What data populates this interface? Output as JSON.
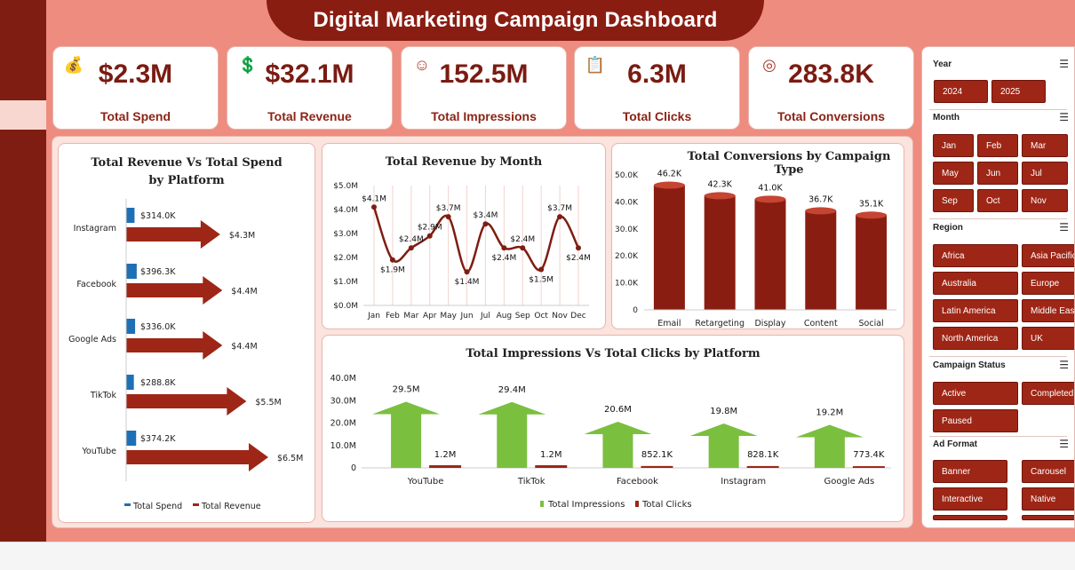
{
  "title": "Digital Marketing Campaign Dashboard",
  "kpis": [
    {
      "icon": "money-bag-icon",
      "value": "$2.3M",
      "label": "Total Spend"
    },
    {
      "icon": "revenue-growth-icon",
      "value": "$32.1M",
      "label": "Total Revenue"
    },
    {
      "icon": "audience-icon",
      "value": "152.5M",
      "label": "Total Impressions"
    },
    {
      "icon": "clipboard-icon",
      "value": "6.3M",
      "label": "Total Clicks"
    },
    {
      "icon": "target-icon",
      "value": "283.8K",
      "label": "Total Conversions"
    }
  ],
  "colors": {
    "accent": "#9e2616",
    "dark": "#7f1d12",
    "background": "#ee8c7f",
    "spend": "#1f6fb5",
    "green": "#7bbf3f"
  },
  "chart_data": [
    {
      "type": "bar",
      "title": "Total Revenue Vs Total Spend by Platform",
      "orientation": "horizontal",
      "categories": [
        "Instagram",
        "Facebook",
        "Google Ads",
        "TikTok",
        "YouTube"
      ],
      "series": [
        {
          "name": "Total Spend",
          "values": [
            314.0,
            396.3,
            336.0,
            288.8,
            374.2
          ],
          "labels": [
            "$314.0K",
            "$396.3K",
            "$336.0K",
            "$288.8K",
            "$374.2K"
          ]
        },
        {
          "name": "Total Revenue",
          "values": [
            4.3,
            4.4,
            4.4,
            5.5,
            6.5
          ],
          "labels": [
            "$4.3M",
            "$4.4M",
            "$4.4M",
            "$5.5M",
            "$6.5M"
          ]
        }
      ],
      "legend": [
        "Total Spend",
        "Total Revenue"
      ]
    },
    {
      "type": "line",
      "title": "Total Revenue  by Month",
      "categories": [
        "Jan",
        "Feb",
        "Mar",
        "Apr",
        "May",
        "Jun",
        "Jul",
        "Aug",
        "Sep",
        "Oct",
        "Nov",
        "Dec"
      ],
      "values": [
        4.1,
        1.9,
        2.4,
        2.9,
        3.7,
        1.4,
        3.4,
        2.4,
        2.4,
        1.5,
        3.7,
        2.4
      ],
      "labels": [
        "$4.1M",
        "$1.9M",
        "$2.4M",
        "$2.9M",
        "$3.7M",
        "$1.4M",
        "$3.4M",
        "$2.4M",
        "$2.4M",
        "$1.5M",
        "$3.7M",
        "$2.4M"
      ],
      "yticks": [
        "$0.0M",
        "$1.0M",
        "$2.0M",
        "$3.0M",
        "$4.0M",
        "$5.0M"
      ],
      "ylim": [
        0,
        5
      ]
    },
    {
      "type": "bar",
      "title": "Total Conversions  by Campaign Type",
      "categories": [
        "Email",
        "Retargeting",
        "Display",
        "Content",
        "Social"
      ],
      "values": [
        46.2,
        42.3,
        41.0,
        36.7,
        35.1
      ],
      "labels": [
        "46.2K",
        "42.3K",
        "41.0K",
        "36.7K",
        "35.1K"
      ],
      "yticks": [
        "0",
        "10.0K",
        "20.0K",
        "30.0K",
        "40.0K",
        "50.0K"
      ],
      "ylim": [
        0,
        50
      ]
    },
    {
      "type": "bar",
      "title": "Total Impressions Vs Total Clicks by Platform",
      "categories": [
        "YouTube",
        "TikTok",
        "Facebook",
        "Instagram",
        "Google Ads"
      ],
      "series": [
        {
          "name": "Total Impressions",
          "values": [
            29.5,
            29.4,
            20.6,
            19.8,
            19.2
          ],
          "labels": [
            "29.5M",
            "29.4M",
            "20.6M",
            "19.8M",
            "19.2M"
          ]
        },
        {
          "name": "Total Clicks",
          "values": [
            1.2,
            1.2,
            0.8521,
            0.8281,
            0.7734
          ],
          "labels": [
            "1.2M",
            "1.2M",
            "852.1K",
            "828.1K",
            "773.4K"
          ]
        }
      ],
      "yticks": [
        "0",
        "10.0M",
        "20.0M",
        "30.0M",
        "40.0M"
      ],
      "ylim": [
        0,
        40
      ],
      "legend": [
        "Total Impressions",
        "Total Clicks"
      ]
    }
  ],
  "filters": {
    "year": {
      "title": "Year",
      "options": [
        "2024",
        "2025"
      ]
    },
    "month": {
      "title": "Month",
      "options": [
        "Jan",
        "Feb",
        "Mar",
        "May",
        "Jun",
        "Jul",
        "Sep",
        "Oct",
        "Nov"
      ]
    },
    "region": {
      "title": "Region",
      "options": [
        "Africa",
        "Asia Pacific",
        "Australia",
        "Europe",
        "Latin America",
        "Middle East",
        "North America",
        "UK"
      ]
    },
    "status": {
      "title": "Campaign Status",
      "options": [
        "Active",
        "Completed",
        "Paused"
      ]
    },
    "adformat": {
      "title": "Ad Format",
      "options": [
        "Banner",
        "Carousel",
        "Interactive",
        "Native"
      ]
    }
  }
}
